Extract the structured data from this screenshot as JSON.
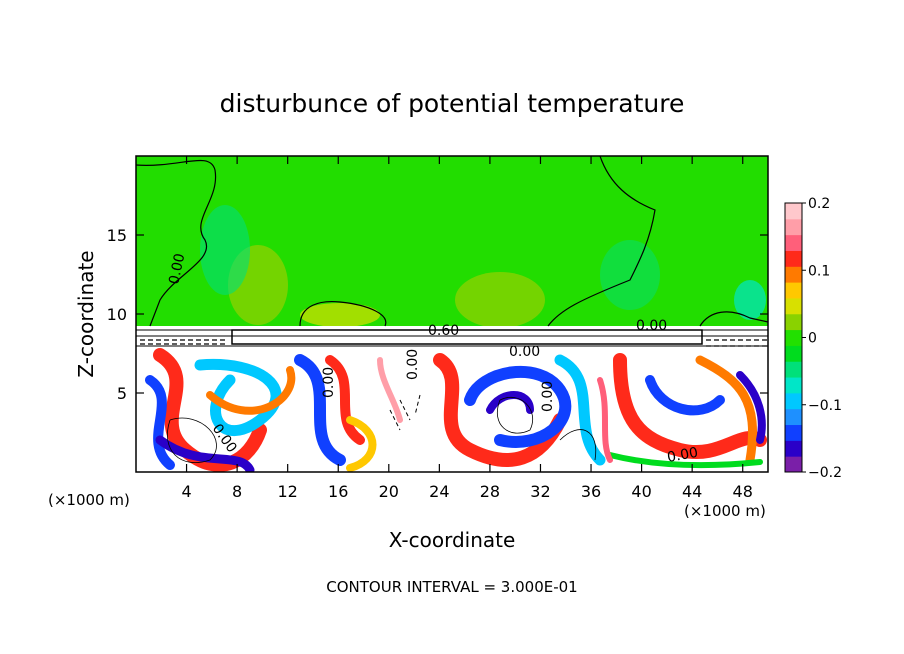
{
  "chart_data": {
    "type": "heatmap",
    "title": "disturbunce of potential temperature",
    "xlabel": "X-coordinate",
    "ylabel": "Z-coordinate",
    "x_unit": "(×1000 m)",
    "y_unit": "(×1000 m)",
    "xlim": [
      0,
      50
    ],
    "ylim": [
      0,
      20
    ],
    "x_ticks": [
      4,
      8,
      12,
      16,
      20,
      24,
      28,
      32,
      36,
      40,
      44,
      48
    ],
    "y_ticks": [
      5,
      10,
      15
    ],
    "colorbar": {
      "range": [
        -0.2,
        0.2
      ],
      "labels": [
        {
          "value": 0.2,
          "text": "0.2"
        },
        {
          "value": 0.1,
          "text": "0.1"
        },
        {
          "value": 0,
          "text": "0"
        },
        {
          "value": -0.1,
          "text": "−0.1"
        },
        {
          "value": -0.2,
          "text": "−0.2"
        }
      ],
      "colors": [
        "#7a1fa8",
        "#2a00c8",
        "#1040ff",
        "#1e90ff",
        "#00c8ff",
        "#00e6c8",
        "#00e07a",
        "#00dc1e",
        "#22e000",
        "#8ad200",
        "#d8e000",
        "#ffc800",
        "#ff7a00",
        "#ff2a1a",
        "#ff5f7a",
        "#ff9ea8",
        "#ffc8cc"
      ]
    },
    "contour_labels": [
      "0.00",
      "0.60",
      "0.00",
      "0.00",
      "0.00",
      "0.00",
      "0.00",
      "0.00",
      "0.00"
    ],
    "contour_interval_text": "CONTOUR INTERVAL = 3.000E-01"
  }
}
